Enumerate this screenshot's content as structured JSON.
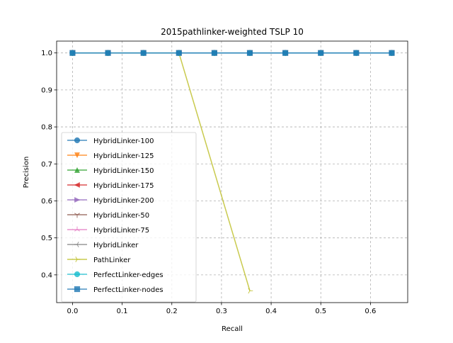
{
  "chart_data": {
    "type": "line",
    "title": "2015pathlinker-weighted TSLP 10",
    "xlabel": "Recall",
    "ylabel": "Precision",
    "xlim": [
      -0.032,
      0.675
    ],
    "ylim": [
      0.325,
      1.032
    ],
    "xticks": [
      "0.0",
      "0.1",
      "0.2",
      "0.3",
      "0.4",
      "0.5",
      "0.6"
    ],
    "xtick_values": [
      0.0,
      0.1,
      0.2,
      0.3,
      0.4,
      0.5,
      0.6
    ],
    "yticks": [
      "0.4",
      "0.5",
      "0.6",
      "0.7",
      "0.8",
      "0.9",
      "1.0"
    ],
    "ytick_values": [
      0.4,
      0.5,
      0.6,
      0.7,
      0.8,
      0.9,
      1.0
    ],
    "grid": true,
    "legend_position": "lower-left",
    "series": [
      {
        "name": "HybridLinker-100",
        "color": "#1f77b4",
        "marker": "circle",
        "x": [
          0.0,
          0.0714,
          0.1429,
          0.2143,
          0.2857,
          0.3571,
          0.4286,
          0.5,
          0.5714,
          0.6429
        ],
        "y": [
          1.0,
          1.0,
          1.0,
          1.0,
          1.0,
          1.0,
          1.0,
          1.0,
          1.0,
          1.0
        ]
      },
      {
        "name": "HybridLinker-125",
        "color": "#ff7f0e",
        "marker": "triangle-down",
        "x": [
          0.0,
          0.0714,
          0.1429,
          0.2143,
          0.2857,
          0.3571,
          0.4286,
          0.5,
          0.5714,
          0.6429
        ],
        "y": [
          1.0,
          1.0,
          1.0,
          1.0,
          1.0,
          1.0,
          1.0,
          1.0,
          1.0,
          1.0
        ]
      },
      {
        "name": "HybridLinker-150",
        "color": "#2ca02c",
        "marker": "triangle-up",
        "x": [
          0.0,
          0.0714,
          0.1429,
          0.2143,
          0.2857,
          0.3571,
          0.4286,
          0.5,
          0.5714,
          0.6429
        ],
        "y": [
          1.0,
          1.0,
          1.0,
          1.0,
          1.0,
          1.0,
          1.0,
          1.0,
          1.0,
          1.0
        ]
      },
      {
        "name": "HybridLinker-175",
        "color": "#d62728",
        "marker": "triangle-left",
        "x": [
          0.0,
          0.0714,
          0.1429,
          0.2143,
          0.2857,
          0.3571,
          0.4286,
          0.5,
          0.5714,
          0.6429
        ],
        "y": [
          1.0,
          1.0,
          1.0,
          1.0,
          1.0,
          1.0,
          1.0,
          1.0,
          1.0,
          1.0
        ]
      },
      {
        "name": "HybridLinker-200",
        "color": "#9467bd",
        "marker": "triangle-right",
        "x": [
          0.0,
          0.0714,
          0.1429,
          0.2143,
          0.2857,
          0.3571,
          0.4286,
          0.5,
          0.5714,
          0.6429
        ],
        "y": [
          1.0,
          1.0,
          1.0,
          1.0,
          1.0,
          1.0,
          1.0,
          1.0,
          1.0,
          1.0
        ]
      },
      {
        "name": "HybridLinker-50",
        "color": "#8c564b",
        "marker": "tri-down",
        "x": [
          0.0,
          0.0714,
          0.1429,
          0.2143,
          0.2857,
          0.3571,
          0.4286,
          0.5,
          0.5714,
          0.6429
        ],
        "y": [
          1.0,
          1.0,
          1.0,
          1.0,
          1.0,
          1.0,
          1.0,
          1.0,
          1.0,
          1.0
        ]
      },
      {
        "name": "HybridLinker-75",
        "color": "#e377c2",
        "marker": "tri-up",
        "x": [
          0.0,
          0.0714,
          0.1429,
          0.2143,
          0.2857,
          0.3571,
          0.4286,
          0.5,
          0.5714,
          0.6429
        ],
        "y": [
          1.0,
          1.0,
          1.0,
          1.0,
          1.0,
          1.0,
          1.0,
          1.0,
          1.0,
          1.0
        ]
      },
      {
        "name": "HybridLinker",
        "color": "#7f7f7f",
        "marker": "tri-left",
        "x": [
          0.0,
          0.0714,
          0.1429,
          0.2143,
          0.2857,
          0.3571,
          0.4286,
          0.5,
          0.5714,
          0.6429
        ],
        "y": [
          1.0,
          1.0,
          1.0,
          1.0,
          1.0,
          1.0,
          1.0,
          1.0,
          1.0,
          1.0
        ]
      },
      {
        "name": "PathLinker",
        "color": "#bcbd22",
        "marker": "tri-right",
        "x": [
          0.0,
          0.0714,
          0.1429,
          0.2143,
          0.3571
        ],
        "y": [
          1.0,
          1.0,
          1.0,
          1.0,
          0.357
        ]
      },
      {
        "name": "PerfectLinker-edges",
        "color": "#17becf",
        "marker": "circle",
        "x": [
          0.0,
          0.0714,
          0.1429,
          0.2143,
          0.2857,
          0.3571,
          0.4286,
          0.5,
          0.5714,
          0.6429
        ],
        "y": [
          1.0,
          1.0,
          1.0,
          1.0,
          1.0,
          1.0,
          1.0,
          1.0,
          1.0,
          1.0
        ]
      },
      {
        "name": "PerfectLinker-nodes",
        "color": "#1f77b4",
        "marker": "square",
        "x": [
          0.0,
          0.0714,
          0.1429,
          0.2143,
          0.2857,
          0.3571,
          0.4286,
          0.5,
          0.5714,
          0.6429
        ],
        "y": [
          1.0,
          1.0,
          1.0,
          1.0,
          1.0,
          1.0,
          1.0,
          1.0,
          1.0,
          1.0
        ]
      }
    ]
  }
}
